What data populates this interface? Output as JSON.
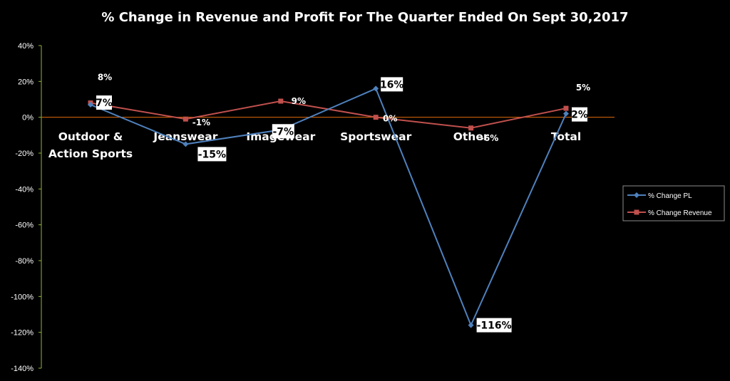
{
  "chart_data": {
    "type": "line",
    "title": "% Change in Revenue and Profit For The Quarter Ended On Sept 30,2017",
    "categories": [
      [
        "Outdoor &",
        "Action Sports"
      ],
      [
        "Jeanswear"
      ],
      [
        "Imagewear"
      ],
      [
        "Sportswear"
      ],
      [
        "Other"
      ],
      [
        "Total"
      ]
    ],
    "ylim": [
      -140,
      40
    ],
    "yticks": [
      40,
      20,
      0,
      -20,
      -40,
      -60,
      -80,
      -100,
      -120,
      -140
    ],
    "ytick_labels": [
      "40%",
      "20%",
      "0%",
      "-20%",
      "-40%",
      "-60%",
      "-80%",
      "-100%",
      "-120%",
      "-140%"
    ],
    "series": [
      {
        "name": "% Change PL",
        "values": [
          7,
          -15,
          -7,
          16,
          -116,
          2
        ],
        "labels": [
          "7%",
          "-15%",
          "-7%",
          "16%",
          "-116%",
          "2%"
        ],
        "color": "#4f81bd",
        "marker": "diamond"
      },
      {
        "name": "% Change Revenue",
        "values": [
          8,
          -1,
          9,
          0,
          -6,
          5
        ],
        "labels": [
          "8%",
          "-1%",
          "9%",
          "0%",
          "-6%",
          "5%"
        ],
        "color": "#c0504d",
        "marker": "square"
      }
    ],
    "zero_line_color": "#e36c09",
    "axis_color": "#8eb43a",
    "legend_position": "right",
    "grid": false
  }
}
